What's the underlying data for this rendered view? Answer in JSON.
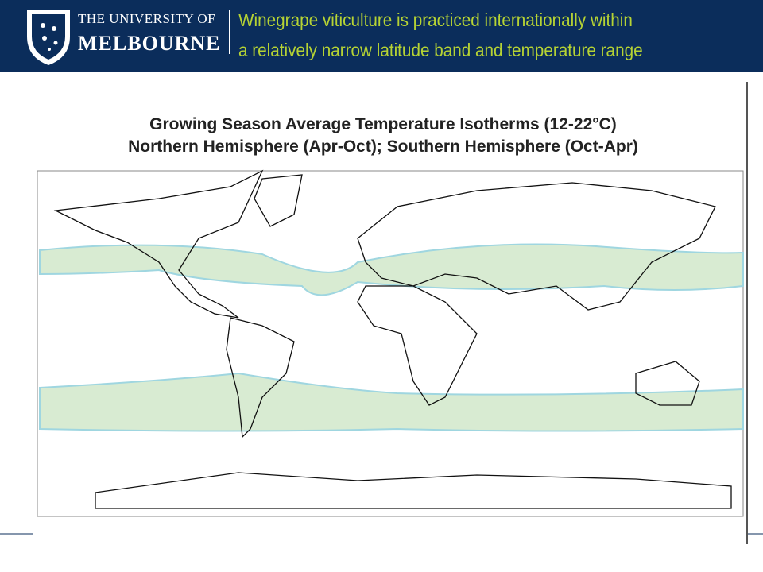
{
  "header": {
    "logo_line1": "THE UNIVERSITY OF",
    "logo_line2": "MELBOURNE",
    "title_line1": "Winegrape viticulture is practiced internationally within",
    "title_line2": "a relatively narrow latitude band and temperature range"
  },
  "map": {
    "title_line1": "Growing Season Average Temperature Isotherms (12-22°C)",
    "title_line2": "Northern Hemisphere (Apr-Oct); Southern Hemisphere (Oct-Apr)"
  }
}
